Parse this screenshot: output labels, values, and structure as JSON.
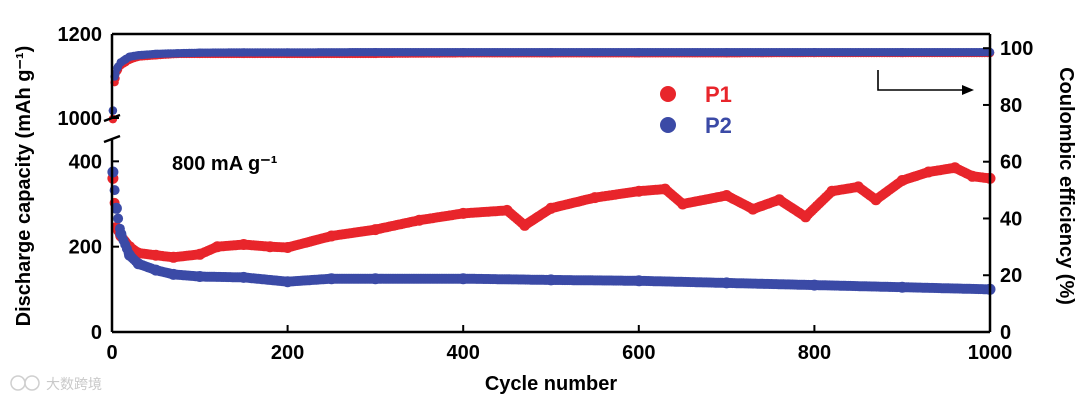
{
  "chart_data": {
    "type": "scatter",
    "xlabel": "Cycle number",
    "ylabel_left": "Discharge capacity (mAh g⁻¹)",
    "ylabel_right": "Coulombic efficiency (%)",
    "x_ticks": [
      "0",
      "200",
      "400",
      "600",
      "800",
      "1000"
    ],
    "xlim": [
      0,
      1000
    ],
    "y_left_ticks_lower": [
      "0",
      "200",
      "400"
    ],
    "y_left_ticks_upper": [
      "1000",
      "1200"
    ],
    "y_left_lower_range": [
      0,
      450
    ],
    "y_left_upper_range": [
      1000,
      1200
    ],
    "y_right_ticks": [
      "0",
      "20",
      "40",
      "60",
      "80",
      "100"
    ],
    "y_right_range": [
      0,
      105
    ],
    "annotation": "800 mA g⁻¹",
    "legend": [
      "P1",
      "P2"
    ],
    "series_colors": {
      "P1": "#e8252b",
      "P2": "#3b4aa6"
    },
    "series": [
      {
        "name": "P1",
        "kind": "discharge_capacity",
        "x": [
          1,
          5,
          10,
          20,
          30,
          50,
          70,
          100,
          120,
          150,
          180,
          200,
          250,
          300,
          350,
          400,
          450,
          470,
          500,
          550,
          600,
          630,
          650,
          700,
          730,
          760,
          790,
          820,
          850,
          870,
          900,
          930,
          960,
          980,
          1000
        ],
        "values": [
          360,
          245,
          225,
          200,
          185,
          180,
          175,
          182,
          200,
          205,
          200,
          198,
          225,
          240,
          262,
          278,
          285,
          250,
          290,
          315,
          330,
          335,
          300,
          320,
          288,
          310,
          270,
          330,
          340,
          310,
          355,
          375,
          385,
          365,
          360
        ]
      },
      {
        "name": "P2",
        "kind": "discharge_capacity",
        "x": [
          1,
          5,
          10,
          20,
          30,
          50,
          70,
          100,
          150,
          200,
          250,
          300,
          400,
          500,
          600,
          700,
          800,
          900,
          1000
        ],
        "values": [
          375,
          290,
          230,
          180,
          160,
          145,
          135,
          130,
          128,
          118,
          125,
          125,
          125,
          122,
          120,
          115,
          110,
          105,
          100
        ]
      },
      {
        "name": "P1",
        "kind": "coulombic_efficiency",
        "x": [
          1,
          3,
          6,
          10,
          15,
          20,
          30,
          50,
          75,
          100,
          150,
          200,
          300,
          400,
          500,
          600,
          700,
          800,
          900,
          1000
        ],
        "values": [
          75,
          88,
          92,
          94,
          95,
          96,
          97,
          97.5,
          98,
          98,
          98,
          98,
          98,
          98.2,
          98.2,
          98.2,
          98.2,
          98.3,
          98.3,
          98.3
        ]
      },
      {
        "name": "P2",
        "kind": "coulombic_efficiency",
        "x": [
          1,
          3,
          6,
          10,
          15,
          20,
          30,
          50,
          75,
          100,
          150,
          200,
          300,
          400,
          500,
          600,
          700,
          800,
          900,
          1000
        ],
        "values": [
          78,
          90,
          93,
          95,
          96,
          97,
          97.5,
          98,
          98.2,
          98.4,
          98.5,
          98.5,
          98.6,
          98.6,
          98.6,
          98.6,
          98.6,
          98.6,
          98.6,
          98.6
        ]
      }
    ]
  },
  "watermark": "大数跨境"
}
